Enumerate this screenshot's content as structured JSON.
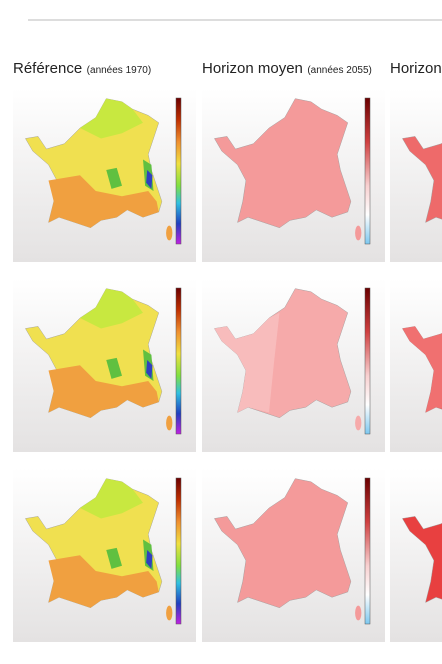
{
  "header": {
    "columns": [
      {
        "title": "Référence",
        "period": "(années 1970)"
      },
      {
        "title": "Horizon moyen",
        "period": "(années 2055)"
      },
      {
        "title": "Horizon"
      }
    ]
  }
}
